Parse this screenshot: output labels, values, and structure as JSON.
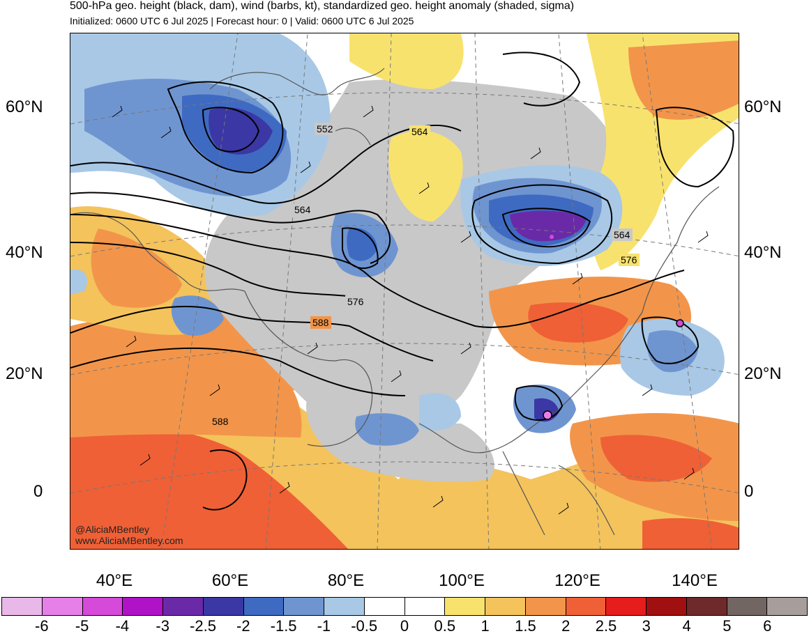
{
  "title": "500-hPa geo. height (black, dam), wind (barbs, kt), standardized geo. height anomaly (shaded, sigma)",
  "subtitle": "Initialized: 0600 UTC 6 Jul 2025 | Forecast hour: 0 | Valid: 0600 UTC 6 Jul 2025",
  "credits": {
    "handle": "@AliciaMBentley",
    "site": "www.AliciaMBentley.com"
  },
  "lat_labels": [
    "60°N",
    "40°N",
    "20°N",
    "0"
  ],
  "lon_labels": [
    "40°E",
    "60°E",
    "80°E",
    "100°E",
    "120°E",
    "140°E"
  ],
  "contour_labels": [
    "552",
    "564",
    "564",
    "564",
    "576",
    "576",
    "588",
    "588"
  ],
  "colorbar": {
    "labels": [
      "-6",
      "-5",
      "-4",
      "-3",
      "-2.5",
      "-2",
      "-1.5",
      "-1",
      "-0.5",
      "0",
      "0.5",
      "1",
      "1.5",
      "2",
      "2.5",
      "3",
      "4",
      "5",
      "6"
    ],
    "colors": [
      "#e8b8e8",
      "#e77fe8",
      "#d54ad8",
      "#b012c8",
      "#6a2aa8",
      "#3b37a4",
      "#3f6ac2",
      "#6f95d1",
      "#a8c8e6",
      "#ffffff",
      "#ffffff",
      "#f8e26e",
      "#f4c35c",
      "#f2954a",
      "#ef6036",
      "#e51d1d",
      "#a01010",
      "#6e2a2a",
      "#726663",
      "#a79e9c"
    ]
  }
}
